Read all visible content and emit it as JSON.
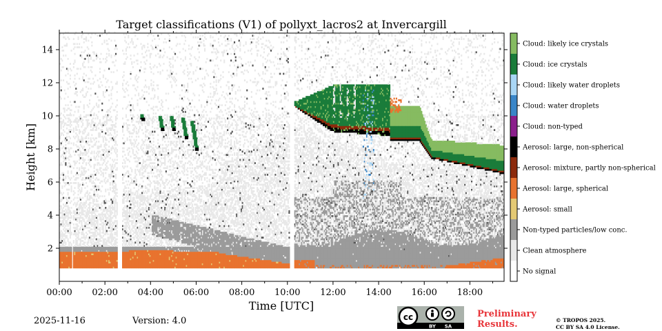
{
  "chart_data": {
    "type": "heatmap",
    "title": "Target classifications (V1) of pollyxt_lacros2 at Invercargill",
    "xlabel": "Time [UTC]",
    "ylabel": "Height [km]",
    "xlim_hours": [
      0,
      19.5
    ],
    "ylim_km": [
      0,
      15
    ],
    "x_ticks": [
      {
        "value": 0,
        "label": "00:00"
      },
      {
        "value": 2,
        "label": "02:00"
      },
      {
        "value": 4,
        "label": "04:00"
      },
      {
        "value": 6,
        "label": "06:00"
      },
      {
        "value": 8,
        "label": "08:00"
      },
      {
        "value": 10,
        "label": "10:00"
      },
      {
        "value": 12,
        "label": "12:00"
      },
      {
        "value": 14,
        "label": "14:00"
      },
      {
        "value": 16,
        "label": "16:00"
      },
      {
        "value": 18,
        "label": "18:00"
      }
    ],
    "y_ticks": [
      {
        "value": 2,
        "label": "2"
      },
      {
        "value": 4,
        "label": "4"
      },
      {
        "value": 6,
        "label": "6"
      },
      {
        "value": 8,
        "label": "8"
      },
      {
        "value": 10,
        "label": "10"
      },
      {
        "value": 12,
        "label": "12"
      },
      {
        "value": 14,
        "label": "14"
      }
    ],
    "classes": [
      {
        "label": "No signal",
        "color": "#ffffff"
      },
      {
        "label": "Clean atmosphere",
        "color": "#e8e8e8"
      },
      {
        "label": "Non-typed particles/low conc.",
        "color": "#9b9b9b"
      },
      {
        "label": "Aerosol: small",
        "color": "#e4c974"
      },
      {
        "label": "Aerosol: large, spherical",
        "color": "#e8732f"
      },
      {
        "label": "Aerosol: mixture, partly non-spherical",
        "color": "#8c2a0c"
      },
      {
        "label": "Aerosol: large, non-spherical",
        "color": "#000000"
      },
      {
        "label": "Cloud: non-typed",
        "color": "#8b1f8c"
      },
      {
        "label": "Cloud: water droplets",
        "color": "#3a86c8"
      },
      {
        "label": "Cloud: likely water droplets",
        "color": "#a9d6f5"
      },
      {
        "label": "Cloud: ice crystals",
        "color": "#1a7c3a"
      },
      {
        "label": "Cloud: likely ice crystals",
        "color": "#86bb61"
      }
    ],
    "regions": [
      {
        "class": "Clean atmosphere",
        "x": [
          0,
          19.5
        ],
        "y": [
          0.8,
          15
        ],
        "note": "scattered speckle, denser below ~9 km"
      },
      {
        "class": "Non-typed particles/low conc.",
        "x": [
          0,
          19.5
        ],
        "y": [
          0.8,
          5
        ],
        "note": "layer thickening, descending 4 km to 2 km by 10:00"
      },
      {
        "class": "Aerosol: large, spherical",
        "x": [
          0,
          10.1
        ],
        "y": [
          0.8,
          1.9
        ],
        "note": "boundary layer"
      },
      {
        "class": "Aerosol: large, spherical",
        "x": [
          10.3,
          19.5
        ],
        "y": [
          0.8,
          1.4
        ],
        "note": "patchy boundary layer"
      },
      {
        "class": "Cloud: ice crystals",
        "x": [
          3.6,
          6.0
        ],
        "y": [
          7.8,
          10
        ],
        "note": "virga streaks"
      },
      {
        "class": "Cloud: ice crystals",
        "x": [
          10.3,
          14.5
        ],
        "y": [
          9.5,
          11.9
        ],
        "note": "descending cloud base"
      },
      {
        "class": "Cloud: likely ice crystals",
        "x": [
          14.5,
          19.5
        ],
        "y": [
          6.8,
          10.5
        ],
        "note": "cirrus layer"
      },
      {
        "class": "Cloud: ice crystals",
        "x": [
          14.5,
          19.5
        ],
        "y": [
          6.4,
          8.8
        ],
        "note": "base of cirrus layer"
      },
      {
        "class": "Cloud: likely water droplets",
        "x": [
          13.4,
          13.8
        ],
        "y": [
          4.8,
          11.5
        ],
        "note": "thin vertical streaks"
      }
    ],
    "gaps_hours": [
      [
        0.5,
        0.6
      ],
      [
        2.5,
        2.7
      ],
      [
        10.1,
        10.3
      ]
    ]
  },
  "footer": {
    "date": "2025-11-16",
    "version": "Version: 4.0",
    "preliminary_line1": "Preliminary",
    "preliminary_line2": "Results.",
    "copyright_line1": "© TROPOS 2025.",
    "copyright_line2": "CC BY SA 4.0 License.",
    "license_badge": {
      "cc": "cc",
      "by": "BY",
      "sa": "SA"
    }
  }
}
